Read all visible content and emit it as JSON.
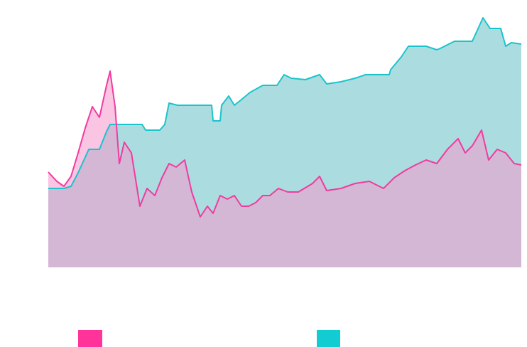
{
  "chart_data": {
    "type": "area",
    "xlim": [
      0,
      666
    ],
    "ylim": [
      0,
      360
    ],
    "series": [
      {
        "color": "#1bc4cc",
        "x": [
          0,
          22,
          32,
          42,
          57,
          72,
          82,
          87,
          132,
          137,
          157,
          164,
          170,
          182,
          230,
          232,
          242,
          244,
          254,
          262,
          272,
          284,
          302,
          322,
          332,
          342,
          362,
          382,
          392,
          412,
          432,
          447,
          480,
          482,
          497,
          507,
          532,
          547,
          552,
          572,
          597,
          612,
          622,
          637,
          644,
          652,
          666
        ],
        "values": [
          111,
          111,
          114,
          133,
          166,
          166,
          191,
          201,
          201,
          193,
          193,
          201,
          231,
          228,
          228,
          206,
          206,
          228,
          241,
          228,
          236,
          246,
          256,
          256,
          271,
          266,
          264,
          271,
          258,
          261,
          266,
          271,
          271,
          278,
          296,
          311,
          311,
          306,
          308,
          318,
          318,
          351,
          336,
          336,
          311,
          316,
          314
        ]
      },
      {
        "color": "#f03ca0",
        "x": [
          0,
          12,
          22,
          32,
          42,
          52,
          62,
          72,
          82,
          87,
          94,
          100,
          107,
          117,
          129,
          139,
          150,
          160,
          170,
          180,
          192,
          202,
          214,
          224,
          232,
          242,
          252,
          262,
          272,
          282,
          292,
          302,
          312,
          324,
          337,
          352,
          372,
          382,
          392,
          412,
          432,
          452,
          472,
          487,
          502,
          517,
          532,
          547,
          562,
          577,
          587,
          597,
          610,
          620,
          632,
          644,
          656,
          666
        ],
        "values": [
          134,
          121,
          114,
          128,
          161,
          196,
          226,
          211,
          256,
          276,
          226,
          146,
          176,
          161,
          86,
          111,
          101,
          126,
          146,
          141,
          151,
          106,
          71,
          86,
          76,
          101,
          96,
          101,
          86,
          86,
          91,
          101,
          101,
          111,
          106,
          106,
          118,
          128,
          108,
          111,
          118,
          121,
          111,
          126,
          136,
          144,
          151,
          146,
          166,
          181,
          161,
          171,
          193,
          151,
          166,
          161,
          146,
          144
        ]
      }
    ]
  }
}
